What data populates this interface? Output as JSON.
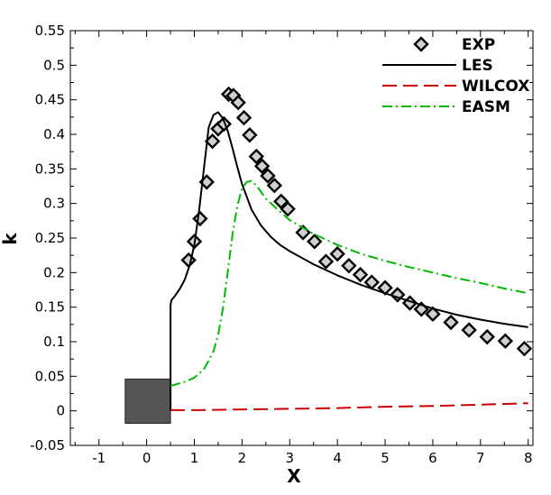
{
  "chart_data": {
    "type": "line",
    "title": "",
    "xlabel": "X",
    "ylabel": "k",
    "xlim": [
      -1.6,
      8.1
    ],
    "ylim": [
      -0.05,
      0.55
    ],
    "xticks": [
      -1,
      0,
      1,
      2,
      3,
      4,
      5,
      6,
      7,
      8
    ],
    "yticks": [
      -0.05,
      0,
      0.05,
      0.1,
      0.15,
      0.2,
      0.25,
      0.3,
      0.35,
      0.4,
      0.45,
      0.5,
      0.55
    ],
    "xtick_labels": [
      "-1",
      "0",
      "1",
      "2",
      "3",
      "4",
      "5",
      "6",
      "7",
      "8"
    ],
    "ytick_labels": [
      "-0.05",
      "0",
      "0.05",
      "0.1",
      "0.15",
      "0.2",
      "0.25",
      "0.3",
      "0.35",
      "0.4",
      "0.45",
      "0.5",
      "0.55"
    ],
    "grid": false,
    "legend_position": "top-right",
    "obstacle": {
      "x": [
        -0.45,
        0.5
      ],
      "y": [
        -0.018,
        0.046
      ],
      "color": "#555555"
    },
    "series": [
      {
        "name": "EXP",
        "style": "markers",
        "color": "#000000",
        "x": [
          0.88,
          1.0,
          1.12,
          1.26,
          1.38,
          1.5,
          1.62,
          1.72,
          1.82,
          1.92,
          2.04,
          2.16,
          2.3,
          2.42,
          2.54,
          2.68,
          2.82,
          2.96,
          3.28,
          3.52,
          3.76,
          4.0,
          4.24,
          4.48,
          4.72,
          5.0,
          5.26,
          5.52,
          5.76,
          6.0,
          6.38,
          6.76,
          7.14,
          7.52,
          7.92
        ],
        "y": [
          0.218,
          0.245,
          0.278,
          0.331,
          0.39,
          0.408,
          0.415,
          0.458,
          0.456,
          0.446,
          0.424,
          0.399,
          0.368,
          0.354,
          0.34,
          0.326,
          0.303,
          0.292,
          0.258,
          0.245,
          0.216,
          0.227,
          0.21,
          0.197,
          0.186,
          0.178,
          0.168,
          0.156,
          0.147,
          0.14,
          0.128,
          0.117,
          0.107,
          0.101,
          0.09
        ]
      },
      {
        "name": "LES",
        "style": "solid",
        "color": "#000000",
        "x": [
          0.5,
          0.5,
          0.52,
          0.6,
          0.7,
          0.8,
          0.9,
          1.0,
          1.1,
          1.2,
          1.3,
          1.4,
          1.5,
          1.6,
          1.7,
          1.8,
          1.9,
          2.0,
          2.2,
          2.4,
          2.6,
          2.8,
          3.0,
          3.5,
          4.0,
          4.5,
          5.0,
          5.5,
          6.0,
          6.5,
          7.0,
          7.5,
          8.0
        ],
        "y": [
          0.0,
          0.153,
          0.16,
          0.167,
          0.177,
          0.19,
          0.21,
          0.24,
          0.29,
          0.35,
          0.41,
          0.428,
          0.432,
          0.423,
          0.405,
          0.38,
          0.353,
          0.328,
          0.291,
          0.268,
          0.252,
          0.24,
          0.231,
          0.212,
          0.196,
          0.182,
          0.17,
          0.159,
          0.148,
          0.139,
          0.132,
          0.126,
          0.121
        ]
      },
      {
        "name": "WILCOX",
        "style": "dashed",
        "color": "#cc0000",
        "x": [
          0.5,
          1.0,
          2.0,
          3.0,
          4.0,
          5.0,
          6.0,
          7.0,
          8.0
        ],
        "y": [
          0.001,
          0.001,
          0.002,
          0.003,
          0.004,
          0.006,
          0.007,
          0.009,
          0.011
        ]
      },
      {
        "name": "EASM",
        "style": "dashdot",
        "color": "#00bb00",
        "x": [
          0.5,
          0.6,
          0.8,
          1.0,
          1.2,
          1.4,
          1.5,
          1.6,
          1.7,
          1.8,
          1.9,
          2.0,
          2.1,
          2.2,
          2.3,
          2.5,
          2.8,
          3.0,
          3.5,
          4.0,
          4.5,
          5.0,
          5.5,
          6.0,
          6.5,
          7.0,
          7.5,
          8.0
        ],
        "y": [
          0.036,
          0.038,
          0.042,
          0.048,
          0.06,
          0.086,
          0.11,
          0.148,
          0.2,
          0.255,
          0.296,
          0.322,
          0.331,
          0.333,
          0.326,
          0.307,
          0.288,
          0.276,
          0.256,
          0.24,
          0.227,
          0.217,
          0.208,
          0.2,
          0.192,
          0.185,
          0.177,
          0.17
        ]
      }
    ]
  }
}
